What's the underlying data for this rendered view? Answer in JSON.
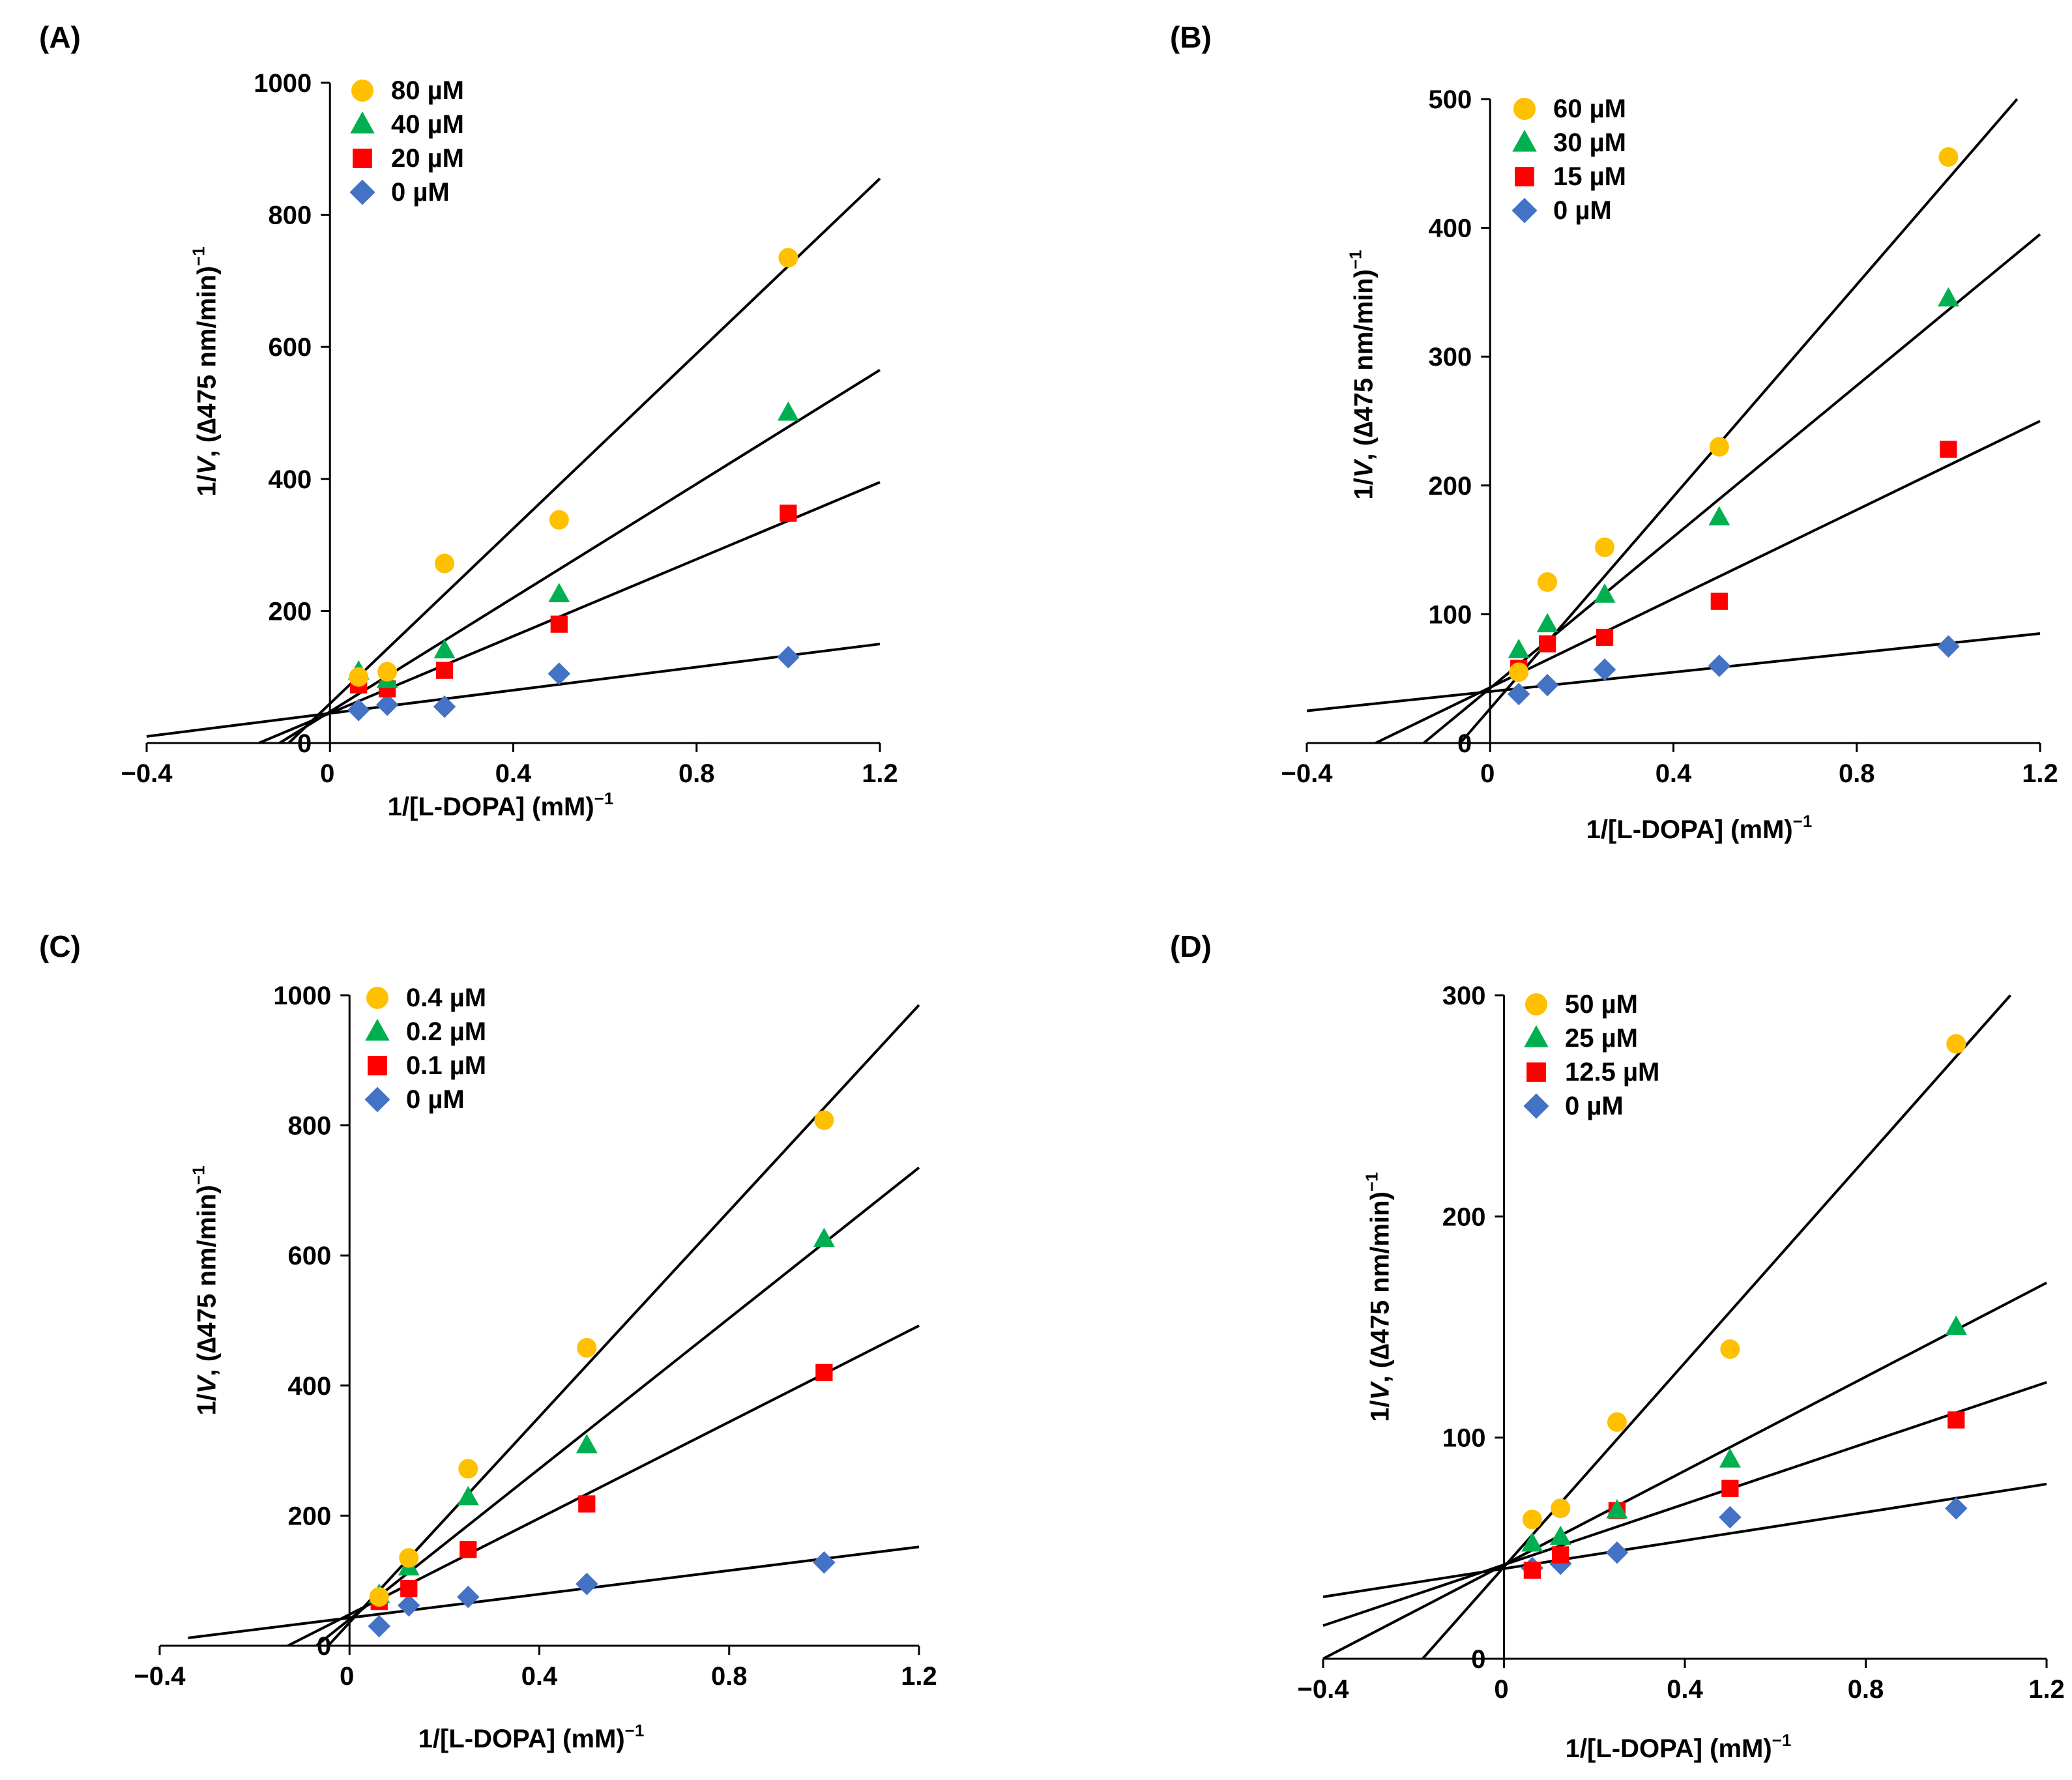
{
  "colors": {
    "circle": "#FFC000",
    "triangle": "#00B050",
    "square": "#FF0000",
    "diamond": "#4472C4",
    "line": "#000000"
  },
  "chart_data": [
    {
      "label": "(A)",
      "type": "scatter",
      "xlabel": {
        "main": "1/[L-DOPA] (mM)",
        "sup": "−1"
      },
      "ylabel": {
        "pre": "1/",
        "italic": "V",
        "post": ", (∆475 nm/min)",
        "sup": "−1"
      },
      "xlim": [
        -0.4,
        1.2
      ],
      "ylim": [
        0,
        1000
      ],
      "x_ticks": [
        "−0.4",
        "0",
        "0.4",
        "0.8",
        "1.2"
      ],
      "x_tick_values": [
        -0.4,
        0,
        0.4,
        0.8,
        1.2
      ],
      "y_ticks": [
        "0",
        "200",
        "400",
        "600",
        "800",
        "1000"
      ],
      "y_tick_values": [
        0,
        200,
        400,
        600,
        800,
        1000
      ],
      "series": [
        {
          "name": "80 µM",
          "marker": "circle",
          "x": [
            0.0625,
            0.125,
            0.25,
            0.5,
            1.0
          ],
          "y": [
            100,
            108,
            272,
            338,
            735
          ],
          "line": [
            [
              -0.09,
              0
            ],
            [
              1.2,
              855
            ]
          ]
        },
        {
          "name": "40 µM",
          "marker": "triangle",
          "x": [
            0.0625,
            0.125,
            0.25,
            0.5,
            1.0
          ],
          "y": [
            108,
            95,
            140,
            225,
            500
          ],
          "line": [
            [
              -0.11,
              0
            ],
            [
              1.2,
              565
            ]
          ]
        },
        {
          "name": "20 µM",
          "marker": "square",
          "x": [
            0.0625,
            0.125,
            0.25,
            0.5,
            1.0
          ],
          "y": [
            88,
            82,
            110,
            180,
            348
          ],
          "line": [
            [
              -0.155,
              0
            ],
            [
              1.2,
              395
            ]
          ]
        },
        {
          "name": "0 µM",
          "marker": "diamond",
          "x": [
            0.0625,
            0.125,
            0.25,
            0.5,
            1.0
          ],
          "y": [
            50,
            58,
            55,
            105,
            130
          ],
          "line": [
            [
              -0.4,
              10
            ],
            [
              1.2,
              150
            ]
          ]
        }
      ]
    },
    {
      "label": "(B)",
      "type": "scatter",
      "xlabel": {
        "main": "1/[L-DOPA] (mM)",
        "sup": "−1"
      },
      "ylabel": {
        "pre": "1/",
        "italic": "V",
        "post": ", (∆475 nm/min)",
        "sup": "−1"
      },
      "xlim": [
        -0.4,
        1.2
      ],
      "ylim": [
        0,
        500
      ],
      "x_ticks": [
        "−0.4",
        "0",
        "0.4",
        "0.8",
        "1.2"
      ],
      "x_tick_values": [
        -0.4,
        0,
        0.4,
        0.8,
        1.2
      ],
      "y_ticks": [
        "0",
        "100",
        "200",
        "300",
        "400",
        "500"
      ],
      "y_tick_values": [
        0,
        100,
        200,
        300,
        400,
        500
      ],
      "series": [
        {
          "name": "60 µM",
          "marker": "circle",
          "x": [
            0.0625,
            0.125,
            0.25,
            0.5,
            1.0
          ],
          "y": [
            55,
            125,
            152,
            230,
            455
          ],
          "line": [
            [
              -0.065,
              0
            ],
            [
              1.15,
              500
            ]
          ]
        },
        {
          "name": "30 µM",
          "marker": "triangle",
          "x": [
            0.0625,
            0.125,
            0.25,
            0.5,
            1.0
          ],
          "y": [
            72,
            92,
            115,
            175,
            345
          ],
          "line": [
            [
              -0.145,
              0
            ],
            [
              1.2,
              395
            ]
          ]
        },
        {
          "name": "15 µM",
          "marker": "square",
          "x": [
            0.0625,
            0.125,
            0.25,
            0.5,
            1.0
          ],
          "y": [
            58,
            77,
            82,
            110,
            228
          ],
          "line": [
            [
              -0.25,
              0
            ],
            [
              1.2,
              250
            ]
          ]
        },
        {
          "name": "0 µM",
          "marker": "diamond",
          "x": [
            0.0625,
            0.125,
            0.25,
            0.5,
            1.0
          ],
          "y": [
            38,
            45,
            57,
            60,
            75
          ],
          "line": [
            [
              -0.4,
              25
            ],
            [
              1.2,
              85
            ]
          ]
        }
      ]
    },
    {
      "label": "(C)",
      "type": "scatter",
      "xlabel": {
        "main": "1/[L-DOPA] (mM)",
        "sup": "−1"
      },
      "ylabel": {
        "pre": "1/",
        "italic": "V",
        "post": ", (∆475 nm/min)",
        "sup": "−1"
      },
      "xlim": [
        -0.4,
        1.2
      ],
      "ylim": [
        0,
        1000
      ],
      "x_ticks": [
        "−0.4",
        "0",
        "0.4",
        "0.8",
        "1.2"
      ],
      "x_tick_values": [
        -0.4,
        0,
        0.4,
        0.8,
        1.2
      ],
      "y_ticks": [
        "0",
        "200",
        "400",
        "600",
        "800",
        "1000"
      ],
      "y_tick_values": [
        0,
        200,
        400,
        600,
        800,
        1000
      ],
      "series": [
        {
          "name": "0.4 µM",
          "marker": "circle",
          "x": [
            0.0625,
            0.125,
            0.25,
            0.5,
            1.0
          ],
          "y": [
            75,
            135,
            272,
            458,
            808
          ],
          "line": [
            [
              -0.045,
              0
            ],
            [
              1.2,
              985
            ]
          ]
        },
        {
          "name": "0.2 µM",
          "marker": "triangle",
          "x": [
            0.0625,
            0.125,
            0.25,
            0.5,
            1.0
          ],
          "y": [
            78,
            120,
            228,
            308,
            625
          ],
          "line": [
            [
              -0.07,
              0
            ],
            [
              1.2,
              735
            ]
          ]
        },
        {
          "name": "0.1 µM",
          "marker": "square",
          "x": [
            0.0625,
            0.125,
            0.25,
            0.5,
            1.0
          ],
          "y": [
            68,
            88,
            148,
            218,
            420
          ],
          "line": [
            [
              -0.13,
              0
            ],
            [
              1.2,
              492
            ]
          ]
        },
        {
          "name": "0 µM",
          "marker": "diamond",
          "x": [
            0.0625,
            0.125,
            0.25,
            0.5,
            1.0
          ],
          "y": [
            30,
            62,
            75,
            95,
            128
          ],
          "line": [
            [
              -0.34,
              12
            ],
            [
              1.2,
              152
            ]
          ]
        }
      ]
    },
    {
      "label": "(D)",
      "type": "scatter",
      "xlabel": {
        "main": "1/[L-DOPA] (mM)",
        "sup": "−1"
      },
      "ylabel": {
        "pre": "1/",
        "italic": "V",
        "post": ", (∆475 nm/min)",
        "sup": "−1"
      },
      "xlim": [
        -0.4,
        1.2
      ],
      "ylim": [
        0,
        300
      ],
      "x_ticks": [
        "−0.4",
        "0",
        "0.4",
        "0.8",
        "1.2"
      ],
      "x_tick_values": [
        -0.4,
        0,
        0.4,
        0.8,
        1.2
      ],
      "y_ticks": [
        "0",
        "100",
        "200",
        "300"
      ],
      "y_tick_values": [
        0,
        100,
        200,
        300
      ],
      "series": [
        {
          "name": "50 µM",
          "marker": "circle",
          "x": [
            0.0625,
            0.125,
            0.25,
            0.5,
            1.0
          ],
          "y": [
            63,
            68,
            107,
            140,
            278
          ],
          "line": [
            [
              -0.18,
              0
            ],
            [
              1.12,
              300
            ]
          ]
        },
        {
          "name": "25 µM",
          "marker": "triangle",
          "x": [
            0.0625,
            0.125,
            0.25,
            0.5,
            1.0
          ],
          "y": [
            52,
            55,
            67,
            90,
            150
          ],
          "line": [
            [
              -0.4,
              0
            ],
            [
              1.2,
              170
            ]
          ]
        },
        {
          "name": "12.5 µM",
          "marker": "square",
          "x": [
            0.0625,
            0.125,
            0.25,
            0.5,
            1.0
          ],
          "y": [
            40,
            47,
            67,
            77,
            108
          ],
          "line": [
            [
              -0.4,
              15
            ],
            [
              1.2,
              125
            ]
          ]
        },
        {
          "name": "0 µM",
          "marker": "diamond",
          "x": [
            0.0625,
            0.125,
            0.25,
            0.5,
            1.0
          ],
          "y": [
            41,
            43,
            48,
            64,
            68
          ],
          "line": [
            [
              -0.4,
              28
            ],
            [
              1.2,
              79
            ]
          ]
        }
      ]
    }
  ]
}
